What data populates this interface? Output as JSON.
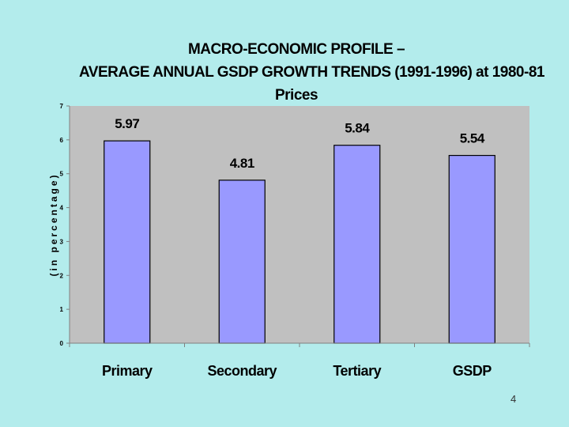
{
  "chart_data": {
    "type": "bar",
    "title_lines": [
      "MACRO-ECONOMIC PROFILE –",
      "AVERAGE ANNUAL GSDP GROWTH TRENDS (1991-1996) at 1980-81",
      "Prices"
    ],
    "categories": [
      "Primary",
      "Secondary",
      "Tertiary",
      "GSDP"
    ],
    "values": [
      5.97,
      4.81,
      5.84,
      5.54
    ],
    "data_labels": [
      "5.97",
      "4.81",
      "5.84",
      "5.54"
    ],
    "xlabel": "",
    "ylabel": "(in percentage)",
    "ylim": [
      0,
      7
    ],
    "yticks": [
      "0",
      "1",
      "2",
      "3",
      "4",
      "5",
      "6",
      "7"
    ],
    "grid": false,
    "legend": "none",
    "colors": {
      "bar_fill": "#9999ff",
      "bar_stroke": "#000000",
      "plot_background": "#c0c0c0",
      "slide_background": "#b3ecec"
    }
  },
  "slide": {
    "page_number": "4"
  }
}
